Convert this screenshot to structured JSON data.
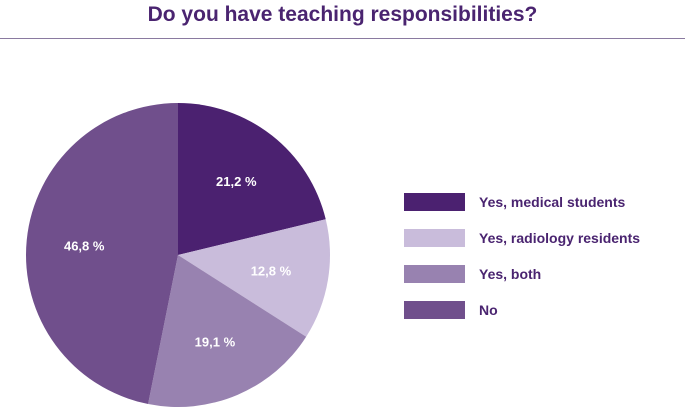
{
  "title": "Do you have teaching responsibilities?",
  "chart_data": {
    "type": "pie",
    "title": "Do you have teaching responsibilities?",
    "categories": [
      "Yes, medical students",
      "Yes, radiology residents",
      "Yes, both",
      "No"
    ],
    "values": [
      21.2,
      12.8,
      19.1,
      46.8
    ],
    "labels": [
      "21,2 %",
      "12,8 %",
      "19,1 %",
      "46,8 %"
    ],
    "colors": [
      "#4b2170",
      "#c9bcdb",
      "#9882b0",
      "#704f8c"
    ],
    "legend_position": "right"
  },
  "legend": [
    {
      "label": "Yes, medical students",
      "color": "#4b2170"
    },
    {
      "label": "Yes, radiology residents",
      "color": "#c9bcdb"
    },
    {
      "label": "Yes, both",
      "color": "#9882b0"
    },
    {
      "label": "No",
      "color": "#704f8c"
    }
  ]
}
